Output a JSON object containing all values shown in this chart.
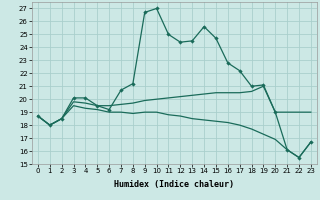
{
  "xlabel": "Humidex (Indice chaleur)",
  "xlim": [
    -0.5,
    23.5
  ],
  "ylim": [
    15,
    27.5
  ],
  "yticks": [
    15,
    16,
    17,
    18,
    19,
    20,
    21,
    22,
    23,
    24,
    25,
    26,
    27
  ],
  "xticks": [
    0,
    1,
    2,
    3,
    4,
    5,
    6,
    7,
    8,
    9,
    10,
    11,
    12,
    13,
    14,
    15,
    16,
    17,
    18,
    19,
    20,
    21,
    22,
    23
  ],
  "background_color": "#cce8e5",
  "grid_color": "#aacfcc",
  "line_color": "#1a6b5a",
  "lines": [
    {
      "markers": true,
      "x": [
        0,
        1,
        2,
        3,
        4,
        5,
        6,
        7,
        8,
        9,
        10,
        11,
        12,
        13,
        14,
        15,
        16,
        17,
        18,
        19,
        20,
        21,
        22,
        23
      ],
      "y": [
        18.7,
        18.0,
        18.5,
        20.1,
        20.1,
        19.5,
        19.2,
        20.7,
        21.2,
        26.7,
        27.0,
        25.0,
        24.4,
        24.5,
        25.6,
        24.7,
        22.8,
        22.2,
        21.0,
        21.1,
        19.0,
        16.1,
        15.5,
        16.7
      ]
    },
    {
      "markers": false,
      "x": [
        0,
        1,
        2,
        3,
        4,
        5,
        6,
        7,
        8,
        9,
        10,
        11,
        12,
        13,
        14,
        15,
        16,
        17,
        18,
        19,
        20,
        21,
        22,
        23
      ],
      "y": [
        18.7,
        18.0,
        18.5,
        19.8,
        19.7,
        19.5,
        19.5,
        19.6,
        19.7,
        19.9,
        20.0,
        20.1,
        20.2,
        20.3,
        20.4,
        20.5,
        20.5,
        20.5,
        20.6,
        21.0,
        19.0,
        19.0,
        19.0,
        19.0
      ]
    },
    {
      "markers": false,
      "x": [
        0,
        1,
        2,
        3,
        4,
        5,
        6,
        7,
        8,
        9,
        10,
        11,
        12,
        13,
        14,
        15,
        16,
        17,
        18,
        19,
        20,
        21,
        22,
        23
      ],
      "y": [
        18.7,
        18.0,
        18.5,
        19.5,
        19.3,
        19.2,
        19.0,
        19.0,
        18.9,
        19.0,
        19.0,
        18.8,
        18.7,
        18.5,
        18.4,
        18.3,
        18.2,
        18.0,
        17.7,
        17.3,
        16.9,
        16.1,
        15.5,
        16.7
      ]
    }
  ]
}
